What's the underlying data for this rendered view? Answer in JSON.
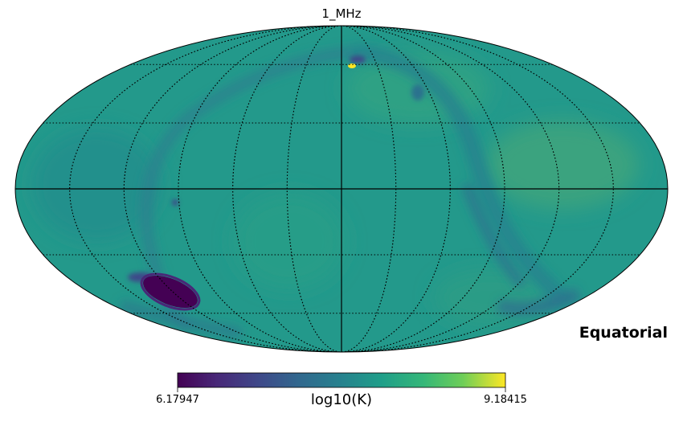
{
  "map": {
    "title": "1_MHz",
    "projection": "mollweide",
    "coordinate_frame": "Equatorial",
    "graticule": true
  },
  "colorbar": {
    "colormap": "viridis",
    "min_label": "6.17947",
    "max_label": "9.18415",
    "unit_label": "log10(K)",
    "min_value": 6.17947,
    "max_value": 9.18415
  }
}
